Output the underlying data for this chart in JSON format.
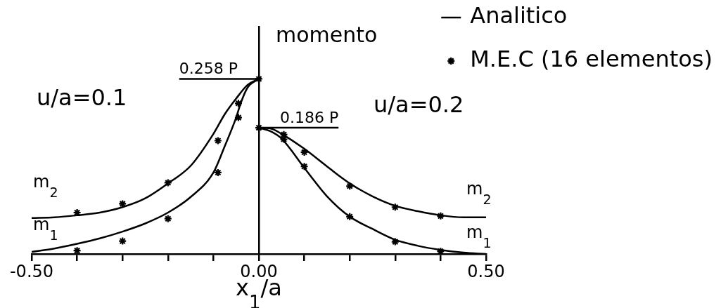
{
  "chart_data": {
    "type": "line",
    "xlabel": "x$_{1}$/a",
    "ylabel": "momento",
    "xlim": [
      -0.5,
      0.5
    ],
    "xticks": [
      {
        "value": -0.5,
        "label": "-0.50"
      },
      {
        "value": -0.4,
        "label": null
      },
      {
        "value": -0.3,
        "label": null
      },
      {
        "value": -0.2,
        "label": null
      },
      {
        "value": -0.1,
        "label": null
      },
      {
        "value": 0,
        "label": "0.00"
      },
      {
        "value": 0.1,
        "label": null
      },
      {
        "value": 0.2,
        "label": null
      },
      {
        "value": 0.3,
        "label": null
      },
      {
        "value": 0.4,
        "label": null
      },
      {
        "value": 0.5,
        "label": "0.50"
      }
    ],
    "ylim": [
      0,
      0.335
    ],
    "tick_labels": "x",
    "legend": "top right",
    "line_style": "solid",
    "ref_lines": [
      {
        "axis": "y",
        "value": 0.258,
        "label": "0.258 P",
        "color": "#000000"
      },
      {
        "axis": "y",
        "value": 0.186,
        "label": "0.186 P",
        "color": "#000000"
      }
    ],
    "annotations": [
      "u/a=0.1",
      "u/a=0.2",
      "m$_{2}$",
      "m$_{1}$",
      "m$_{2}$",
      "m$_{1}$"
    ],
    "series": [
      {
        "name": "Analitico",
        "type": "line",
        "color": "#000000",
        "marker": "none",
        "x": [
          -0.5,
          -0.45,
          -0.4,
          -0.35,
          -0.3,
          -0.25,
          -0.2,
          -0.15,
          -0.1,
          -0.075,
          -0.05,
          -0.025,
          0
        ],
        "values": [
          0.053,
          0.054,
          0.057,
          0.061,
          0.069,
          0.082,
          0.104,
          0.13,
          0.177,
          0.206,
          0.229,
          0.249,
          0.258
        ]
      },
      {
        "type": "line",
        "color": "#000000",
        "marker": "none",
        "x": [
          -0.5,
          -0.45,
          -0.4,
          -0.35,
          -0.3,
          -0.25,
          -0.2,
          -0.15,
          -0.1,
          -0.075,
          -0.05,
          -0.04,
          -0.025,
          0
        ],
        "values": [
          0.003,
          0.008,
          0.015,
          0.023,
          0.033,
          0.045,
          0.061,
          0.084,
          0.12,
          0.159,
          0.201,
          0.222,
          0.245,
          0.258
        ]
      },
      {
        "type": "line",
        "color": "#000000",
        "marker": "none",
        "x": [
          0,
          0.025,
          0.05,
          0.1,
          0.15,
          0.2,
          0.25,
          0.3,
          0.35,
          0.4,
          0.45,
          0.5
        ],
        "values": [
          0.186,
          0.185,
          0.177,
          0.155,
          0.129,
          0.104,
          0.085,
          0.071,
          0.063,
          0.057,
          0.054,
          0.054
        ]
      },
      {
        "type": "line",
        "color": "#000000",
        "marker": "none",
        "x": [
          0,
          0.025,
          0.05,
          0.1,
          0.15,
          0.2,
          0.25,
          0.3,
          0.35,
          0.4,
          0.45,
          0.5
        ],
        "values": [
          0.186,
          0.181,
          0.17,
          0.127,
          0.085,
          0.055,
          0.037,
          0.021,
          0.012,
          0.006,
          0.002,
          0
        ]
      },
      {
        "name": "M.E.C (16 elementos)",
        "type": "scatter",
        "color": "#000000",
        "marker": "cross",
        "x": [
          -0.4,
          -0.4,
          -0.3,
          -0.3,
          -0.2,
          -0.2,
          -0.09,
          -0.09,
          -0.045,
          -0.045,
          0,
          0,
          0.055,
          0.055,
          0.1,
          0.1,
          0.2,
          0.2,
          0.3,
          0.3,
          0.4,
          0.4
        ],
        "values": [
          0.061,
          0.005,
          0.074,
          0.019,
          0.105,
          0.052,
          0.167,
          0.12,
          0.222,
          0.201,
          0.258,
          0.186,
          0.176,
          0.169,
          0.15,
          0.129,
          0.1,
          0.055,
          0.069,
          0.018,
          0.056,
          0.004
        ]
      }
    ]
  }
}
